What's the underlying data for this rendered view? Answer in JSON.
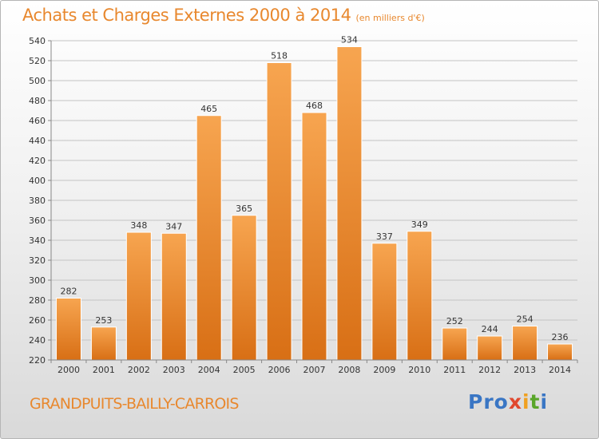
{
  "chart_data": {
    "type": "bar",
    "title": "Achats et Charges Externes 2000 à 2014",
    "subtitle": "(en milliers d'€)",
    "categories": [
      "2000",
      "2001",
      "2002",
      "2003",
      "2004",
      "2005",
      "2006",
      "2007",
      "2008",
      "2009",
      "2010",
      "2011",
      "2012",
      "2013",
      "2014"
    ],
    "values": [
      282,
      253,
      348,
      347,
      465,
      365,
      518,
      468,
      534,
      337,
      349,
      252,
      244,
      254,
      236
    ],
    "ylim": [
      220,
      540
    ],
    "yticks": [
      220,
      240,
      260,
      280,
      300,
      320,
      340,
      360,
      380,
      400,
      420,
      440,
      460,
      480,
      500,
      520,
      540
    ],
    "grid": true,
    "bar_color": "#f0963a",
    "bar_color_dark": "#d86f15"
  },
  "footer": {
    "commune": "GRANDPUITS-BAILLY-CARROIS",
    "logo": [
      "Pro",
      "x",
      "i",
      "t",
      "i"
    ]
  }
}
